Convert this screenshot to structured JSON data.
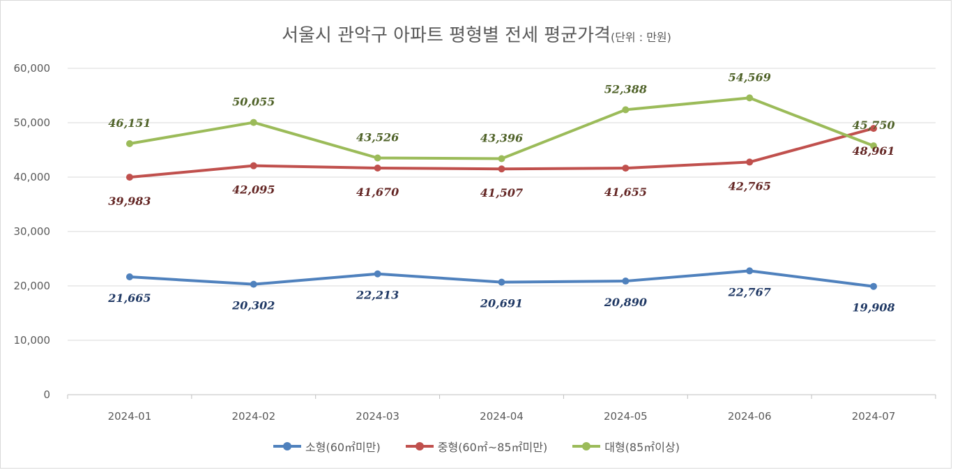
{
  "chart_data": {
    "type": "line",
    "title": "서울시 관악구 아파트 평형별 전세 평균가격",
    "title_unit": "(단위 : 만원)",
    "categories": [
      "2024-01",
      "2024-02",
      "2024-03",
      "2024-04",
      "2024-05",
      "2024-06",
      "2024-07"
    ],
    "ylim": [
      0,
      60000
    ],
    "yticks": [
      "0",
      "10,000",
      "20,000",
      "30,000",
      "40,000",
      "50,000",
      "60,000"
    ],
    "grid": true,
    "legend_position": "bottom",
    "series": [
      {
        "name": "소형(60㎡미만)",
        "color": "#4f81bd",
        "label_color": "#1f3864",
        "values": [
          21665,
          20302,
          22213,
          20691,
          20890,
          22767,
          19908
        ],
        "labels": [
          "21,665",
          "20,302",
          "22,213",
          "20,691",
          "20,890",
          "22,767",
          "19,908"
        ]
      },
      {
        "name": "중형(60㎡~85㎡미만)",
        "color": "#c0504d",
        "label_color": "#632523",
        "values": [
          39983,
          42095,
          41670,
          41507,
          41655,
          42765,
          48961
        ],
        "labels": [
          "39,983",
          "42,095",
          "41,670",
          "41,507",
          "41,655",
          "42,765",
          "48,961"
        ]
      },
      {
        "name": "대형(85㎡이상)",
        "color": "#9bbb59",
        "label_color": "#4f6228",
        "values": [
          46151,
          50055,
          43526,
          43396,
          52388,
          54569,
          45750
        ],
        "labels": [
          "46,151",
          "50,055",
          "43,526",
          "43,396",
          "52,388",
          "54,569",
          "45,750"
        ]
      }
    ]
  }
}
